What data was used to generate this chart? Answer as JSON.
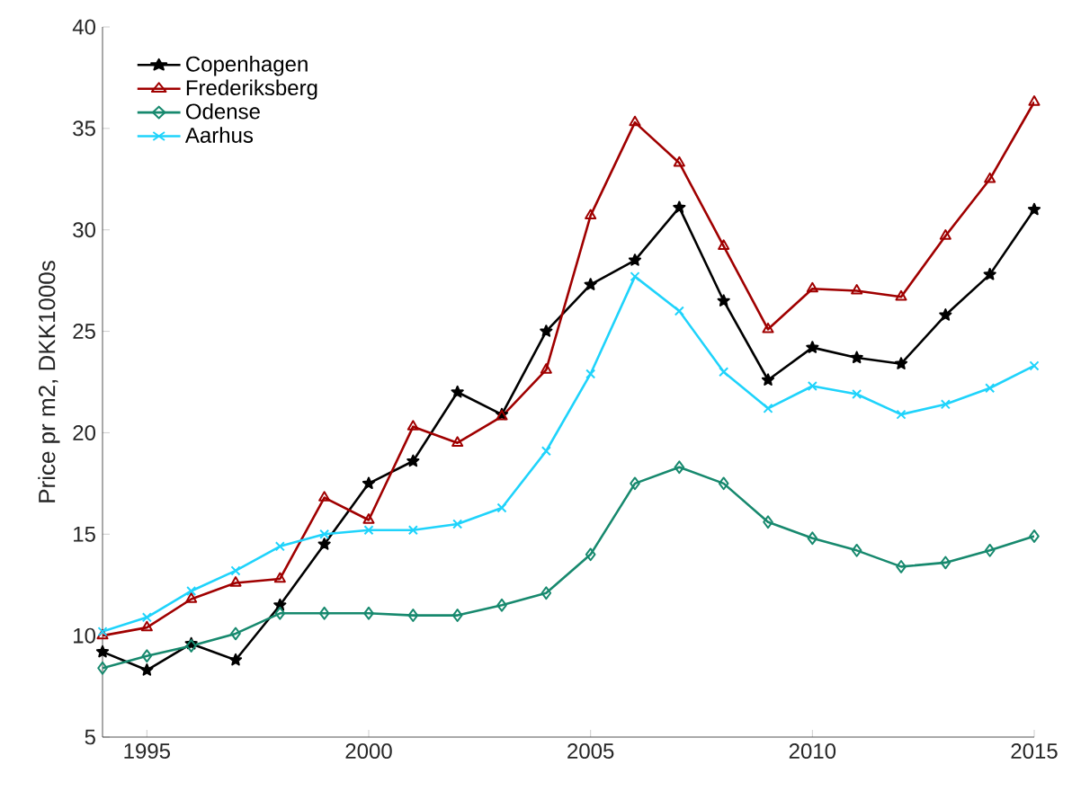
{
  "chart_data": {
    "type": "line",
    "ylabel": "Price pr m2, DKK1000s",
    "x": [
      1994,
      1995,
      1996,
      1997,
      1998,
      1999,
      2000,
      2001,
      2002,
      2003,
      2004,
      2005,
      2006,
      2007,
      2008,
      2009,
      2010,
      2011,
      2012,
      2013,
      2014,
      2015
    ],
    "xlim": [
      1994,
      2015
    ],
    "xticks": [
      1995,
      2000,
      2005,
      2010,
      2015
    ],
    "ylim": [
      5,
      40
    ],
    "yticks": [
      5,
      10,
      15,
      20,
      25,
      30,
      35,
      40
    ],
    "legend": "top left",
    "grid": false,
    "series": [
      {
        "name": "Copenhagen",
        "color": "#000000",
        "marker": "star",
        "values": [
          9.2,
          8.3,
          9.6,
          8.8,
          11.5,
          14.5,
          17.5,
          18.6,
          22.0,
          20.9,
          25.0,
          27.3,
          28.5,
          31.1,
          26.5,
          22.6,
          24.2,
          23.7,
          23.4,
          25.8,
          27.8,
          31.0
        ]
      },
      {
        "name": "Frederiksberg",
        "color": "#a00000",
        "marker": "triangle",
        "values": [
          10.0,
          10.4,
          11.8,
          12.6,
          12.8,
          16.8,
          15.7,
          20.3,
          19.5,
          20.8,
          23.1,
          30.7,
          35.3,
          33.3,
          29.2,
          25.1,
          27.1,
          27.0,
          26.7,
          29.7,
          32.5,
          36.3
        ]
      },
      {
        "name": "Odense",
        "color": "#17896e",
        "marker": "diamond",
        "values": [
          8.4,
          9.0,
          9.5,
          10.1,
          11.1,
          11.1,
          11.1,
          11.0,
          11.0,
          11.5,
          12.1,
          14.0,
          17.5,
          18.3,
          17.5,
          15.6,
          14.8,
          14.2,
          13.4,
          13.6,
          14.2,
          14.9
        ]
      },
      {
        "name": "Aarhus",
        "color": "#1fd3fb",
        "marker": "cross",
        "values": [
          10.2,
          10.9,
          12.2,
          13.2,
          14.4,
          15.0,
          15.2,
          15.2,
          15.5,
          16.3,
          19.1,
          22.9,
          27.7,
          26.0,
          23.0,
          21.2,
          22.3,
          21.9,
          20.9,
          21.4,
          22.2,
          23.3
        ]
      }
    ]
  }
}
